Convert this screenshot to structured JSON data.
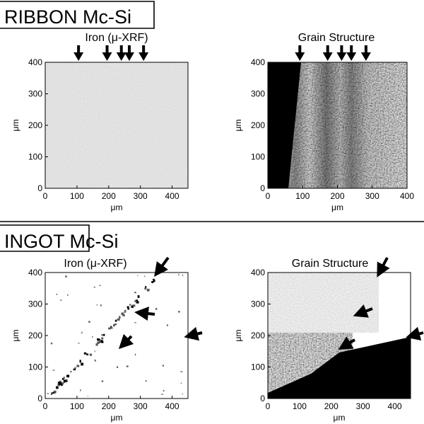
{
  "sections": [
    {
      "title": "RIBBON Mc-Si",
      "panels": [
        {
          "title": "Iron (μ-XRF)",
          "xlabel": "μm",
          "ylabel": "μm",
          "xticks": [
            "0",
            "100",
            "200",
            "300",
            "400"
          ],
          "yticks": [
            "0",
            "100",
            "200",
            "300",
            "400"
          ],
          "xlim": [
            0,
            450
          ],
          "ylim": [
            0,
            400
          ],
          "kind": "ribbon-iron",
          "arrows_x": [
            105,
            195,
            240,
            265,
            310
          ]
        },
        {
          "title": "Grain Structure",
          "xlabel": "μm",
          "ylabel": "μm",
          "xticks": [
            "0",
            "100",
            "200",
            "300",
            "400"
          ],
          "yticks": [
            "0",
            "100",
            "200",
            "300",
            "400"
          ],
          "xlim": [
            0,
            400
          ],
          "ylim": [
            0,
            400
          ],
          "kind": "ribbon-grain",
          "arrows_x": [
            92,
            172,
            212,
            240,
            282
          ]
        }
      ]
    },
    {
      "title": "INGOT Mc-Si",
      "panels": [
        {
          "title": "Iron (μ-XRF)",
          "xlabel": "μm",
          "ylabel": "μm",
          "xticks": [
            "0",
            "100",
            "200",
            "300",
            "400"
          ],
          "yticks": [
            "0",
            "100",
            "200",
            "300",
            "400"
          ],
          "xlim": [
            0,
            450
          ],
          "ylim": [
            0,
            400
          ],
          "kind": "ingot-iron"
        },
        {
          "title": "Grain Structure",
          "xlabel": "μm",
          "ylabel": "μm",
          "xticks": [
            "0",
            "100",
            "200",
            "300",
            "400"
          ],
          "yticks": [
            "0",
            "100",
            "200",
            "300",
            "400"
          ],
          "xlim": [
            0,
            450
          ],
          "ylim": [
            0,
            400
          ],
          "kind": "ingot-grain"
        }
      ]
    }
  ]
}
